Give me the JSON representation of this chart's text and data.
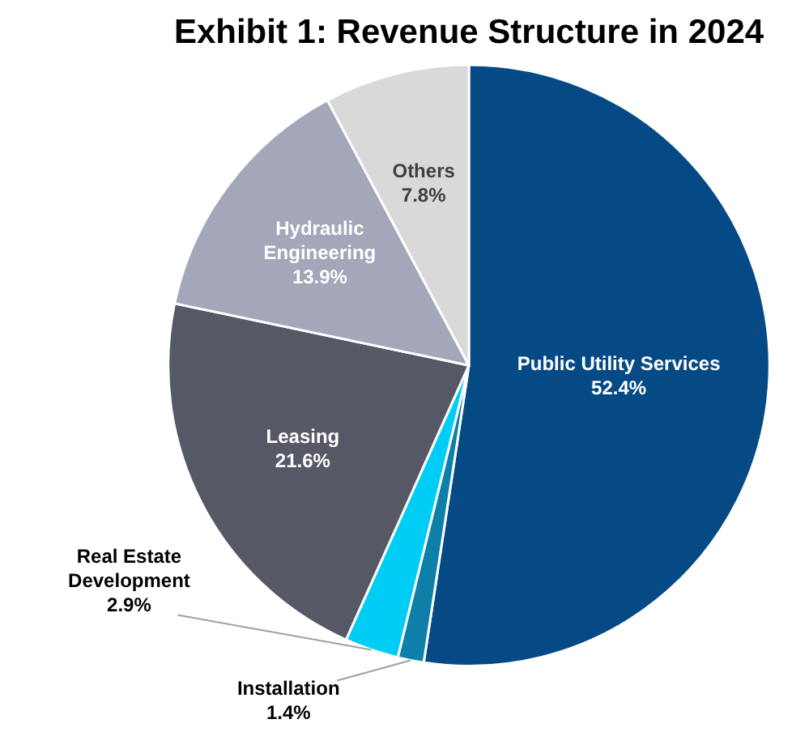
{
  "chart_data": {
    "type": "pie",
    "title": "Exhibit 1: Revenue Structure in 2024",
    "categories": [
      "Public Utility Services",
      "Installation",
      "Real Estate Development",
      "Leasing",
      "Hydraulic Engineering",
      "Others"
    ],
    "values": [
      52.4,
      1.4,
      2.9,
      21.6,
      13.9,
      7.8
    ],
    "value_labels": [
      "52.4%",
      "1.4%",
      "2.9%",
      "21.6%",
      "13.9%",
      "7.8%"
    ],
    "colors": [
      "#064a85",
      "#0e7fa8",
      "#00cdf5",
      "#565866",
      "#a4a7b9",
      "#d9d9d9"
    ],
    "legend": false
  }
}
